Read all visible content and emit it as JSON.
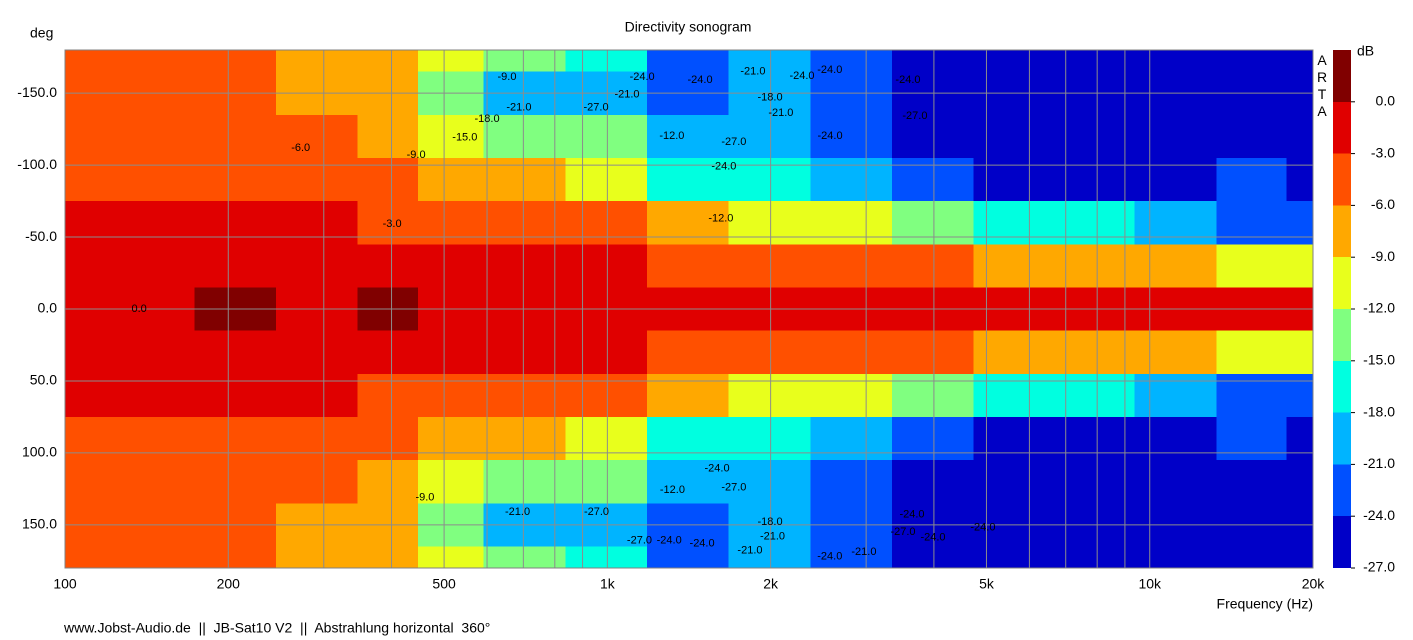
{
  "chart_data": {
    "type": "heatmap",
    "title": "Directivity sonogram",
    "xlabel": "Frequency (Hz)",
    "ylabel": "deg",
    "brand": "ARTA",
    "footer": "www.Jobst-Audio.de  ||  JB-Sat10 V2  ||  Abstrahlung horizontal  360°",
    "xscale": "log",
    "xlim": [
      100,
      20000
    ],
    "ylim": [
      -180,
      180
    ],
    "xticks": [
      100,
      200,
      500,
      {
        "value": 1000,
        "label": "1k"
      },
      {
        "value": 2000,
        "label": "2k"
      },
      {
        "value": 5000,
        "label": "5k"
      },
      {
        "value": 10000,
        "label": "10k"
      },
      {
        "value": 20000,
        "label": "20k"
      }
    ],
    "xminor": [
      300,
      400,
      600,
      700,
      800,
      900,
      3000,
      4000,
      6000,
      7000,
      8000,
      9000
    ],
    "yticks": [
      {
        "value": -150,
        "label": "-150.0"
      },
      {
        "value": -100,
        "label": "-100.0"
      },
      {
        "value": -50,
        "label": "-50.0"
      },
      {
        "value": 0,
        "label": "0.0"
      },
      {
        "value": 50,
        "label": "50.0"
      },
      {
        "value": 100,
        "label": "100.0"
      },
      {
        "value": 150,
        "label": "150.0"
      }
    ],
    "grid": true,
    "x": [
      100,
      150,
      200,
      300,
      400,
      500,
      700,
      1000,
      1400,
      2000,
      2800,
      4000,
      5600,
      8000,
      11000,
      16000,
      20000
    ],
    "y": [
      -180,
      -150,
      -120,
      -90,
      -60,
      -30,
      0,
      30,
      60,
      90,
      120,
      150,
      180
    ],
    "z": [
      [
        -5,
        -5,
        -5,
        -7,
        -9,
        -12,
        -15,
        -17,
        -22,
        -21,
        -24,
        -26,
        -26,
        -26,
        -26,
        -26,
        -26
      ],
      [
        -5,
        -5,
        -5,
        -7,
        -9,
        -14,
        -20,
        -20,
        -24,
        -20,
        -23,
        -26,
        -26,
        -26,
        -26,
        -26,
        -26
      ],
      [
        -4.5,
        -4.5,
        -4.5,
        -6,
        -8,
        -10,
        -14,
        -14,
        -20,
        -19,
        -22,
        -26,
        -26,
        -26,
        -26,
        -26,
        -26
      ],
      [
        -4,
        -4,
        -4,
        -5,
        -6,
        -7,
        -9,
        -12,
        -16,
        -18,
        -20,
        -22,
        -25,
        -25,
        -25,
        -24,
        -25
      ],
      [
        -2.5,
        -2.5,
        -2.5,
        -3,
        -3.5,
        -4,
        -4.5,
        -6,
        -8,
        -10,
        -12,
        -14,
        -16,
        -18,
        -20,
        -22,
        -22
      ],
      [
        -2,
        -2,
        -2,
        -2,
        -2,
        -2,
        -2.5,
        -2.5,
        -3.5,
        -4.5,
        -5,
        -6,
        -7,
        -8,
        -9,
        -10,
        -10
      ],
      [
        -1,
        -1,
        0.5,
        -1,
        0.5,
        -1,
        -1.5,
        -2,
        -2,
        -2,
        -2,
        -2,
        -2,
        -2,
        -2,
        -2,
        -2
      ],
      [
        -2,
        -2,
        -2,
        -2,
        -2,
        -2,
        -2.5,
        -2.5,
        -3.5,
        -4.5,
        -5,
        -6,
        -7,
        -8,
        -9,
        -10,
        -10
      ],
      [
        -2.5,
        -2.5,
        -2.5,
        -3,
        -3.5,
        -4,
        -4.5,
        -6,
        -8,
        -10,
        -12,
        -14,
        -16,
        -18,
        -20,
        -22,
        -22
      ],
      [
        -4,
        -4,
        -4,
        -5,
        -6,
        -7,
        -9,
        -12,
        -16,
        -18,
        -20,
        -22,
        -25,
        -25,
        -25,
        -24,
        -25
      ],
      [
        -4.5,
        -4.5,
        -4.5,
        -6,
        -8,
        -10,
        -14,
        -14,
        -20,
        -19,
        -22,
        -26,
        -26,
        -26,
        -26,
        -26,
        -26
      ],
      [
        -5,
        -5,
        -5,
        -7,
        -9,
        -14,
        -20,
        -20,
        -24,
        -20,
        -23,
        -26,
        -26,
        -26,
        -26,
        -26,
        -26
      ],
      [
        -5,
        -5,
        -5,
        -7,
        -9,
        -12,
        -15,
        -17,
        -22,
        -21,
        -24,
        -26,
        -26,
        -26,
        -26,
        -26,
        -26
      ]
    ],
    "colorbar": {
      "label": "dB",
      "lim": [
        -27,
        3
      ],
      "levels": [
        0,
        -3,
        -6,
        -9,
        -12,
        -15,
        -18,
        -21,
        -24
      ],
      "colors": [
        "#800000",
        "#e00000",
        "#ff5000",
        "#ffa800",
        "#e8ff1c",
        "#80ff80",
        "#00ffe0",
        "#00b4ff",
        "#0050ff",
        "#0000c8"
      ],
      "ticks": [
        {
          "value": 0,
          "label": "0.0"
        },
        {
          "value": -3,
          "label": "-3.0"
        },
        {
          "value": -6,
          "label": "-6.0"
        },
        {
          "value": -9,
          "label": "-9.0"
        },
        {
          "value": -12,
          "label": "-12.0"
        },
        {
          "value": -15,
          "label": "-15.0"
        },
        {
          "value": -18,
          "label": "-18.0"
        },
        {
          "value": -21,
          "label": "-21.0"
        },
        {
          "value": -24,
          "label": "-24.0"
        },
        {
          "value": -27,
          "label": "-27.0"
        }
      ]
    },
    "contour_labels": [
      {
        "text": "-9.0",
        "x": 653,
        "y": -161
      },
      {
        "text": "-24.0",
        "x": 1159,
        "y": -161
      },
      {
        "text": "-24.0",
        "x": 1482,
        "y": -159
      },
      {
        "text": "-21.0",
        "x": 1855,
        "y": -165
      },
      {
        "text": "-24.0",
        "x": 2285,
        "y": -162
      },
      {
        "text": "-24.0",
        "x": 2571,
        "y": -166
      },
      {
        "text": "-24.0",
        "x": 3583,
        "y": -159
      },
      {
        "text": "-21.0",
        "x": 1087,
        "y": -149
      },
      {
        "text": "-18.0",
        "x": 1995,
        "y": -147
      },
      {
        "text": "-27.0",
        "x": 953,
        "y": -140
      },
      {
        "text": "-21.0",
        "x": 687,
        "y": -140
      },
      {
        "text": "-21.0",
        "x": 2089,
        "y": -136
      },
      {
        "text": "-27.0",
        "x": 3690,
        "y": -134
      },
      {
        "text": "-18.0",
        "x": 600,
        "y": -132
      },
      {
        "text": "-15.0",
        "x": 546,
        "y": -119
      },
      {
        "text": "-12.0",
        "x": 1315,
        "y": -120
      },
      {
        "text": "-24.0",
        "x": 2574,
        "y": -120
      },
      {
        "text": "-27.0",
        "x": 1711,
        "y": -116
      },
      {
        "text": "-6.0",
        "x": 272,
        "y": -112
      },
      {
        "text": "-9.0",
        "x": 444,
        "y": -107
      },
      {
        "text": "-24.0",
        "x": 1640,
        "y": -99
      },
      {
        "text": "-12.0",
        "x": 1619,
        "y": -63
      },
      {
        "text": "-3.0",
        "x": 401,
        "y": -59
      },
      {
        "text": "0.0",
        "x": 137,
        "y": 0
      },
      {
        "text": "-24.0",
        "x": 1593,
        "y": 111
      },
      {
        "text": "-27.0",
        "x": 1711,
        "y": 124
      },
      {
        "text": "-12.0",
        "x": 1318,
        "y": 126
      },
      {
        "text": "-9.0",
        "x": 461,
        "y": 131
      },
      {
        "text": "-21.0",
        "x": 683,
        "y": 141
      },
      {
        "text": "-27.0",
        "x": 955,
        "y": 141
      },
      {
        "text": "-18.0",
        "x": 1995,
        "y": 148
      },
      {
        "text": "-21.0",
        "x": 2016,
        "y": 158
      },
      {
        "text": "-27.0",
        "x": 1146,
        "y": 161
      },
      {
        "text": "-24.0",
        "x": 1300,
        "y": 161
      },
      {
        "text": "-24.0",
        "x": 1495,
        "y": 163
      },
      {
        "text": "-21.0",
        "x": 1832,
        "y": 168
      },
      {
        "text": "-24.0",
        "x": 2571,
        "y": 172
      },
      {
        "text": "-21.0",
        "x": 2972,
        "y": 169
      },
      {
        "text": "-24.0",
        "x": 3645,
        "y": 143
      },
      {
        "text": "-27.0",
        "x": 3508,
        "y": 155
      },
      {
        "text": "-24.0",
        "x": 3985,
        "y": 159
      },
      {
        "text": "-24.0",
        "x": 4925,
        "y": 152
      }
    ]
  }
}
